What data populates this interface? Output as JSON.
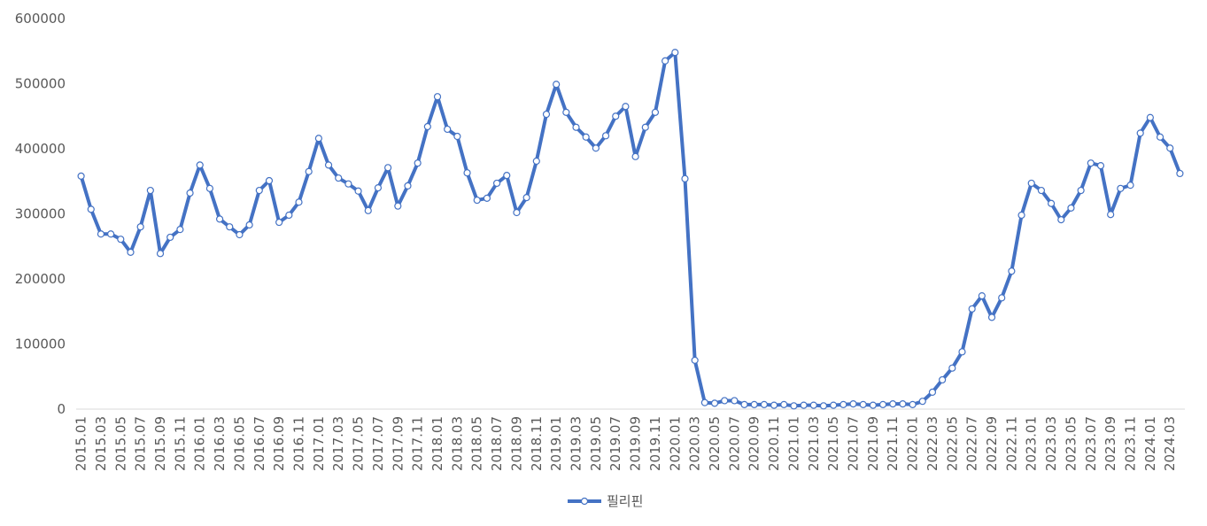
{
  "chart_data": {
    "type": "line",
    "categories": [
      "2015.01",
      null,
      "2015.03",
      null,
      "2015.05",
      null,
      "2015.07",
      null,
      "2015.09",
      null,
      "2015.11",
      null,
      "2016.01",
      null,
      "2016.03",
      null,
      "2016.05",
      null,
      "2016.07",
      null,
      "2016.09",
      null,
      "2016.11",
      null,
      "2017.01",
      null,
      "2017.03",
      null,
      "2017.05",
      null,
      "2017.07",
      null,
      "2017.09",
      null,
      "2017.11",
      null,
      "2018.01",
      null,
      "2018.03",
      null,
      "2018.05",
      null,
      "2018.07",
      null,
      "2018.09",
      null,
      "2018.11",
      null,
      "2019.01",
      null,
      "2019.03",
      null,
      "2019.05",
      null,
      "2019.07",
      null,
      "2019.09",
      null,
      "2019.11",
      null,
      "2020.01",
      null,
      "2020.03",
      null,
      "2020.05",
      null,
      "2020.07",
      null,
      "2020.09",
      null,
      "2020.11",
      null,
      "2021.01",
      null,
      "2021.03",
      null,
      "2021.05",
      null,
      "2021.07",
      null,
      "2021.09",
      null,
      "2021.11",
      null,
      "2022.01",
      null,
      "2022.03",
      null,
      "2022.05",
      null,
      "2022.07",
      null,
      "2022.09",
      null,
      "2022.11",
      null,
      "2023.01",
      null,
      "2023.03",
      null,
      "2023.05",
      null,
      "2023.07",
      null,
      "2023.09",
      null,
      "2023.11",
      null,
      "2024.01",
      null,
      "2024.03",
      null
    ],
    "series": [
      {
        "name": "필리핀",
        "color": "#4472c4",
        "values": [
          358000,
          307000,
          269000,
          269000,
          261000,
          241000,
          280000,
          336000,
          239000,
          264000,
          276000,
          332000,
          375000,
          339000,
          292000,
          280000,
          268000,
          283000,
          336000,
          351000,
          287000,
          298000,
          318000,
          365000,
          416000,
          375000,
          355000,
          346000,
          335000,
          305000,
          340000,
          371000,
          312000,
          343000,
          378000,
          434000,
          480000,
          430000,
          419000,
          363000,
          321000,
          324000,
          347000,
          359000,
          302000,
          325000,
          381000,
          453000,
          499000,
          456000,
          433000,
          418000,
          401000,
          420000,
          450000,
          465000,
          388000,
          433000,
          456000,
          535000,
          548000,
          354000,
          75000,
          10000,
          9000,
          13000,
          13000,
          7000,
          7000,
          7000,
          6000,
          7000,
          5000,
          6000,
          6000,
          5000,
          6000,
          7000,
          8000,
          7000,
          6000,
          7000,
          8000,
          8000,
          7000,
          12000,
          26000,
          45000,
          63000,
          88000,
          154000,
          174000,
          141000,
          171000,
          212000,
          298000,
          347000,
          336000,
          316000,
          291000,
          309000,
          336000,
          378000,
          374000,
          299000,
          339000,
          344000,
          424000,
          448000,
          418000,
          401000,
          362000
        ]
      }
    ],
    "ylim": [
      0,
      600000
    ],
    "yticks": [
      0,
      100000,
      200000,
      300000,
      400000,
      500000,
      600000
    ],
    "grid": false,
    "legend": "bottom"
  }
}
